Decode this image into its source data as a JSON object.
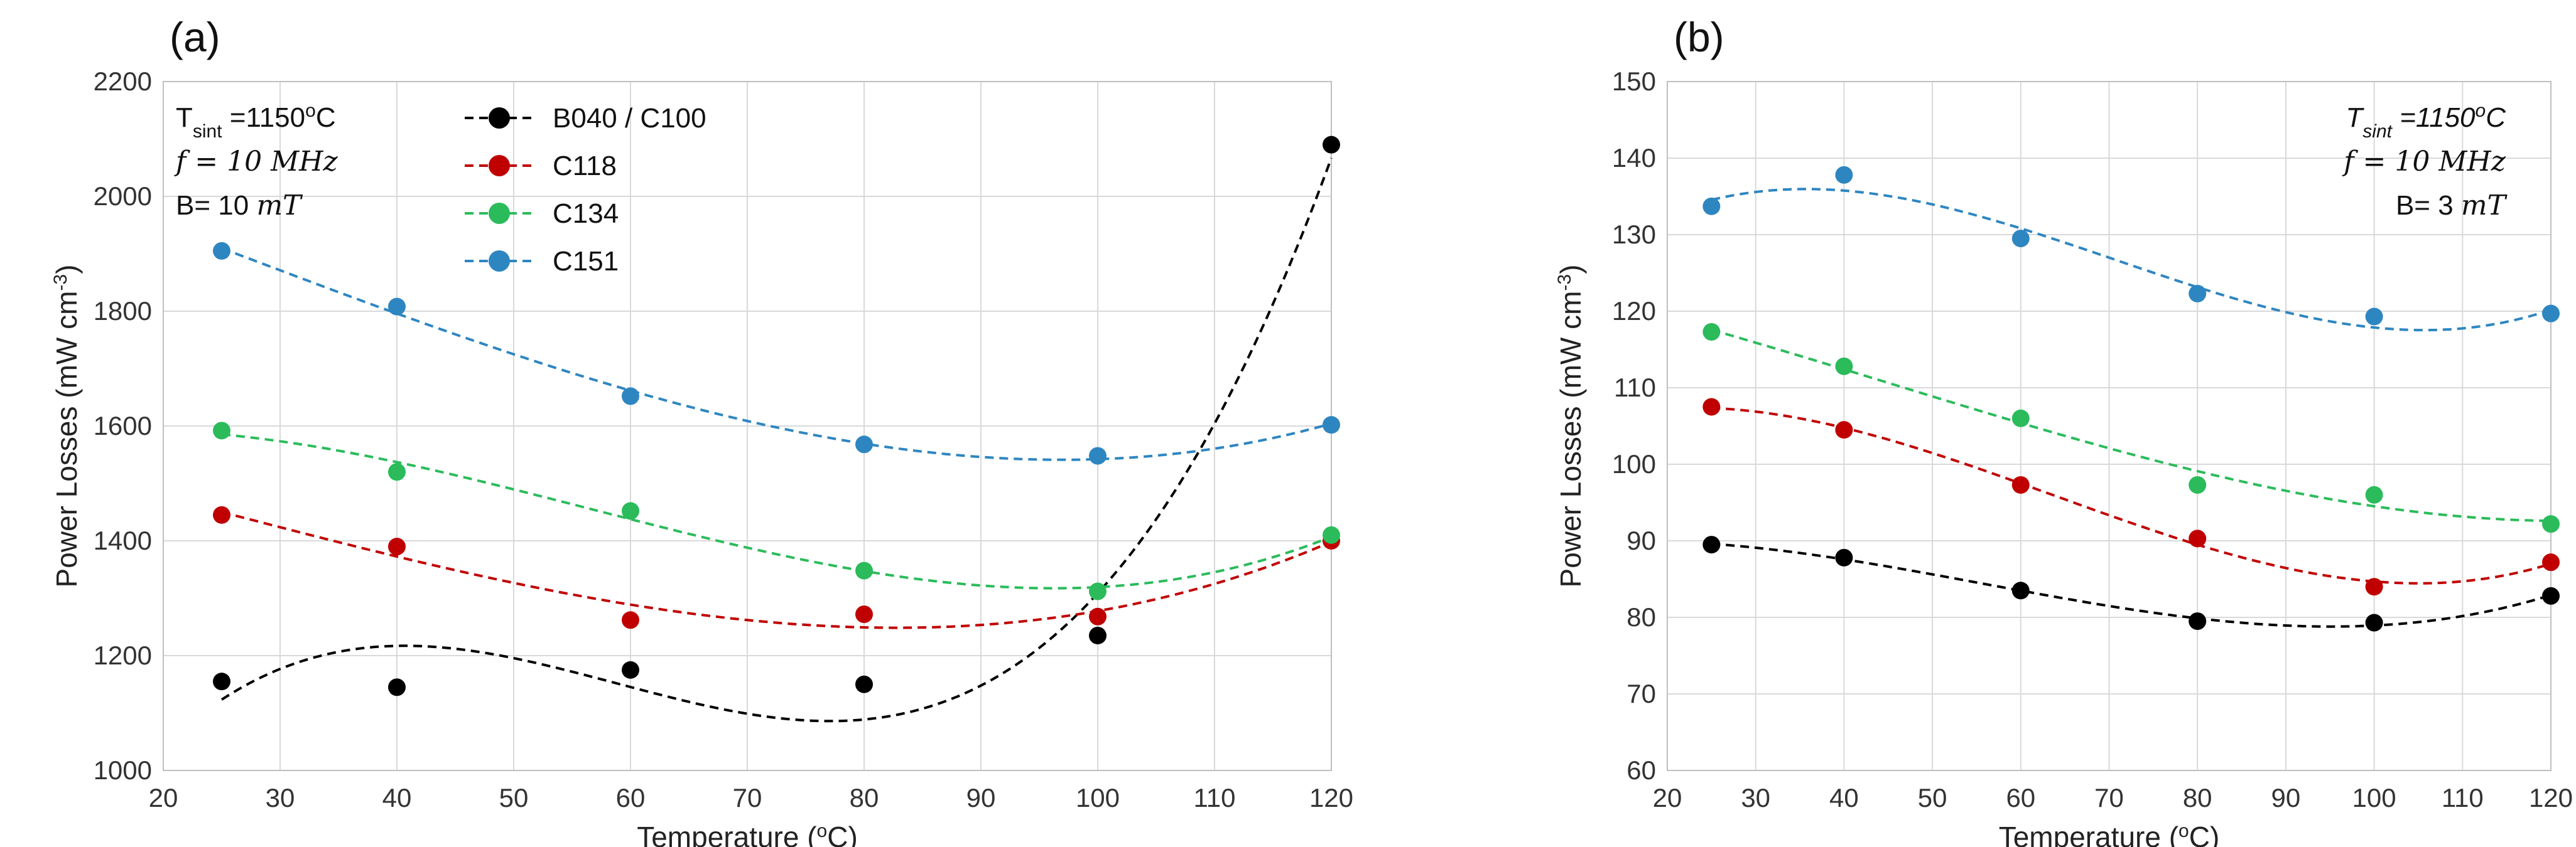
{
  "chart_data": [
    {
      "type": "scatter",
      "panel_label": "(a)",
      "xlabel": "Temperature (",
      "xlabel_sup": "o",
      "xlabel_end": "C)",
      "ylabel": "Power Losses (mW cm",
      "ylabel_sup": "-3",
      "ylabel_end": ")",
      "xlim": [
        20,
        120
      ],
      "ylim": [
        1000,
        2200
      ],
      "xticks": [
        "20",
        "30",
        "40",
        "50",
        "60",
        "70",
        "80",
        "90",
        "100",
        "110",
        "120"
      ],
      "yticks": [
        "1000",
        "1200",
        "1400",
        "1600",
        "1800",
        "2000",
        "2200"
      ],
      "grid": true,
      "legend_position": "top-center",
      "annotations": {
        "tsint_prefix": "T",
        "tsint_sub": "sint",
        "tsint_value": " =1150",
        "tsint_sup": "o",
        "tsint_unit": "C",
        "freq": "f = 10 MHz",
        "b_field_prefix": "B= 10 ",
        "b_field_unit": "mT"
      },
      "series": [
        {
          "name": "B040 / C100",
          "color": "#000000",
          "x": [
            25,
            40,
            60,
            80,
            100,
            120
          ],
          "y": [
            1155,
            1145,
            1175,
            1150,
            1235,
            2090
          ]
        },
        {
          "name": "C118",
          "color": "#c00000",
          "x": [
            25,
            40,
            60,
            80,
            100,
            120
          ],
          "y": [
            1445,
            1390,
            1262,
            1272,
            1268,
            1400
          ]
        },
        {
          "name": "C134",
          "color": "#2bbb5b",
          "x": [
            25,
            40,
            60,
            80,
            100,
            120
          ],
          "y": [
            1592,
            1520,
            1452,
            1348,
            1312,
            1410
          ]
        },
        {
          "name": "C151",
          "color": "#2e86c1",
          "x": [
            25,
            40,
            60,
            80,
            100,
            120
          ],
          "y": [
            1905,
            1808,
            1652,
            1568,
            1548,
            1602
          ]
        }
      ]
    },
    {
      "type": "scatter",
      "panel_label": "(b)",
      "xlabel": "Temperature (",
      "xlabel_sup": "o",
      "xlabel_end": "C)",
      "ylabel": "Power Losses (mW cm",
      "ylabel_sup": "-3",
      "ylabel_end": ")",
      "xlim": [
        20,
        120
      ],
      "ylim": [
        60,
        150
      ],
      "xticks": [
        "20",
        "30",
        "40",
        "50",
        "60",
        "70",
        "80",
        "90",
        "100",
        "110",
        "120"
      ],
      "yticks": [
        "60",
        "70",
        "80",
        "90",
        "100",
        "110",
        "120",
        "130",
        "140",
        "150"
      ],
      "grid": true,
      "legend_position": "none",
      "annotations": {
        "tsint_prefix": "T",
        "tsint_sub": "sint",
        "tsint_value": " =1150",
        "tsint_sup": "o",
        "tsint_unit": "C",
        "freq": "f = 10 MHz",
        "b_field_prefix": "B= 3 ",
        "b_field_unit": "mT"
      },
      "series": [
        {
          "name": "B040 / C100",
          "color": "#000000",
          "x": [
            25,
            40,
            60,
            80,
            100,
            120
          ],
          "y": [
            89.5,
            87.8,
            83.5,
            79.5,
            79.3,
            82.8
          ]
        },
        {
          "name": "C118",
          "color": "#c00000",
          "x": [
            25,
            40,
            60,
            80,
            100,
            120
          ],
          "y": [
            107.5,
            104.5,
            97.3,
            90.3,
            84.0,
            87.2
          ]
        },
        {
          "name": "C134",
          "color": "#2bbb5b",
          "x": [
            25,
            40,
            60,
            80,
            100,
            120
          ],
          "y": [
            117.3,
            112.8,
            106.0,
            97.3,
            96.0,
            92.2
          ]
        },
        {
          "name": "C151",
          "color": "#2e86c1",
          "x": [
            25,
            40,
            60,
            80,
            100,
            120
          ],
          "y": [
            133.7,
            137.8,
            129.5,
            122.3,
            119.3,
            119.7
          ]
        }
      ]
    }
  ]
}
